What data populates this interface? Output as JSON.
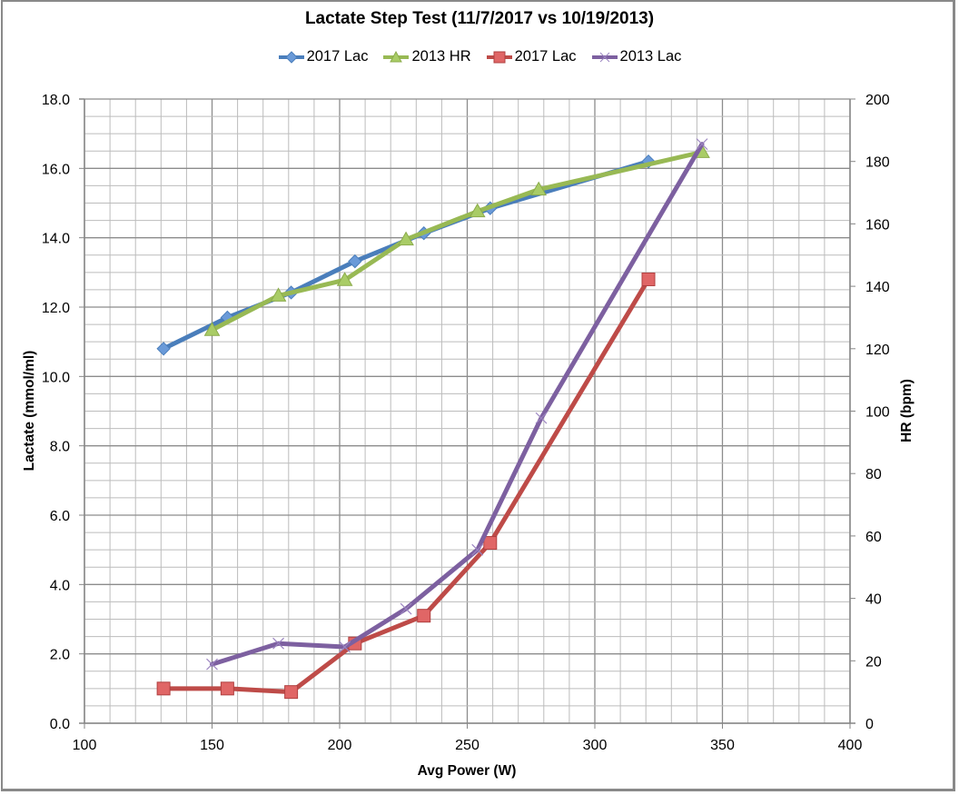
{
  "chart_data": {
    "type": "line",
    "title": "Lactate Step Test (11/7/2017  vs 10/19/2013)",
    "xlabel": "Avg Power (W)",
    "ylabel": "Lactate (mmol/ml)",
    "y2label": "HR (bpm)",
    "xlim": [
      100,
      400
    ],
    "ylim": [
      0,
      18
    ],
    "y2lim": [
      0,
      200
    ],
    "x_ticks": [
      "100",
      "150",
      "200",
      "250",
      "300",
      "350",
      "400"
    ],
    "y_ticks": [
      "0.0",
      "2.0",
      "4.0",
      "6.0",
      "8.0",
      "10.0",
      "12.0",
      "14.0",
      "16.0",
      "18.0"
    ],
    "y2_ticks": [
      "0",
      "20",
      "40",
      "60",
      "80",
      "100",
      "120",
      "140",
      "160",
      "180",
      "200"
    ],
    "grid": true,
    "legend_position": "top",
    "series": [
      {
        "name": "2017 Lac",
        "axis": "right",
        "color": "#4a7ebb",
        "marker": "diamond",
        "x": [
          131,
          156,
          181,
          206,
          233,
          259,
          321
        ],
        "y": [
          120,
          130,
          138,
          148,
          157,
          165,
          180
        ]
      },
      {
        "name": "2013 HR",
        "axis": "right",
        "color": "#98b954",
        "marker": "triangle",
        "x": [
          150,
          176,
          202,
          226,
          254,
          278,
          342
        ],
        "y": [
          126,
          137,
          142,
          155,
          164,
          171,
          183
        ]
      },
      {
        "name": "2017 Lac",
        "axis": "left",
        "color": "#be4b48",
        "marker": "square",
        "x": [
          131,
          156,
          181,
          206,
          233,
          259,
          321
        ],
        "y": [
          1.0,
          1.0,
          0.9,
          2.3,
          3.1,
          5.2,
          12.8
        ]
      },
      {
        "name": "2013 Lac",
        "axis": "left",
        "color": "#7d60a0",
        "marker": "x",
        "x": [
          150,
          176,
          202,
          226,
          254,
          279,
          342
        ],
        "y": [
          1.7,
          2.3,
          2.2,
          3.3,
          5.0,
          8.8,
          16.7
        ]
      }
    ]
  }
}
